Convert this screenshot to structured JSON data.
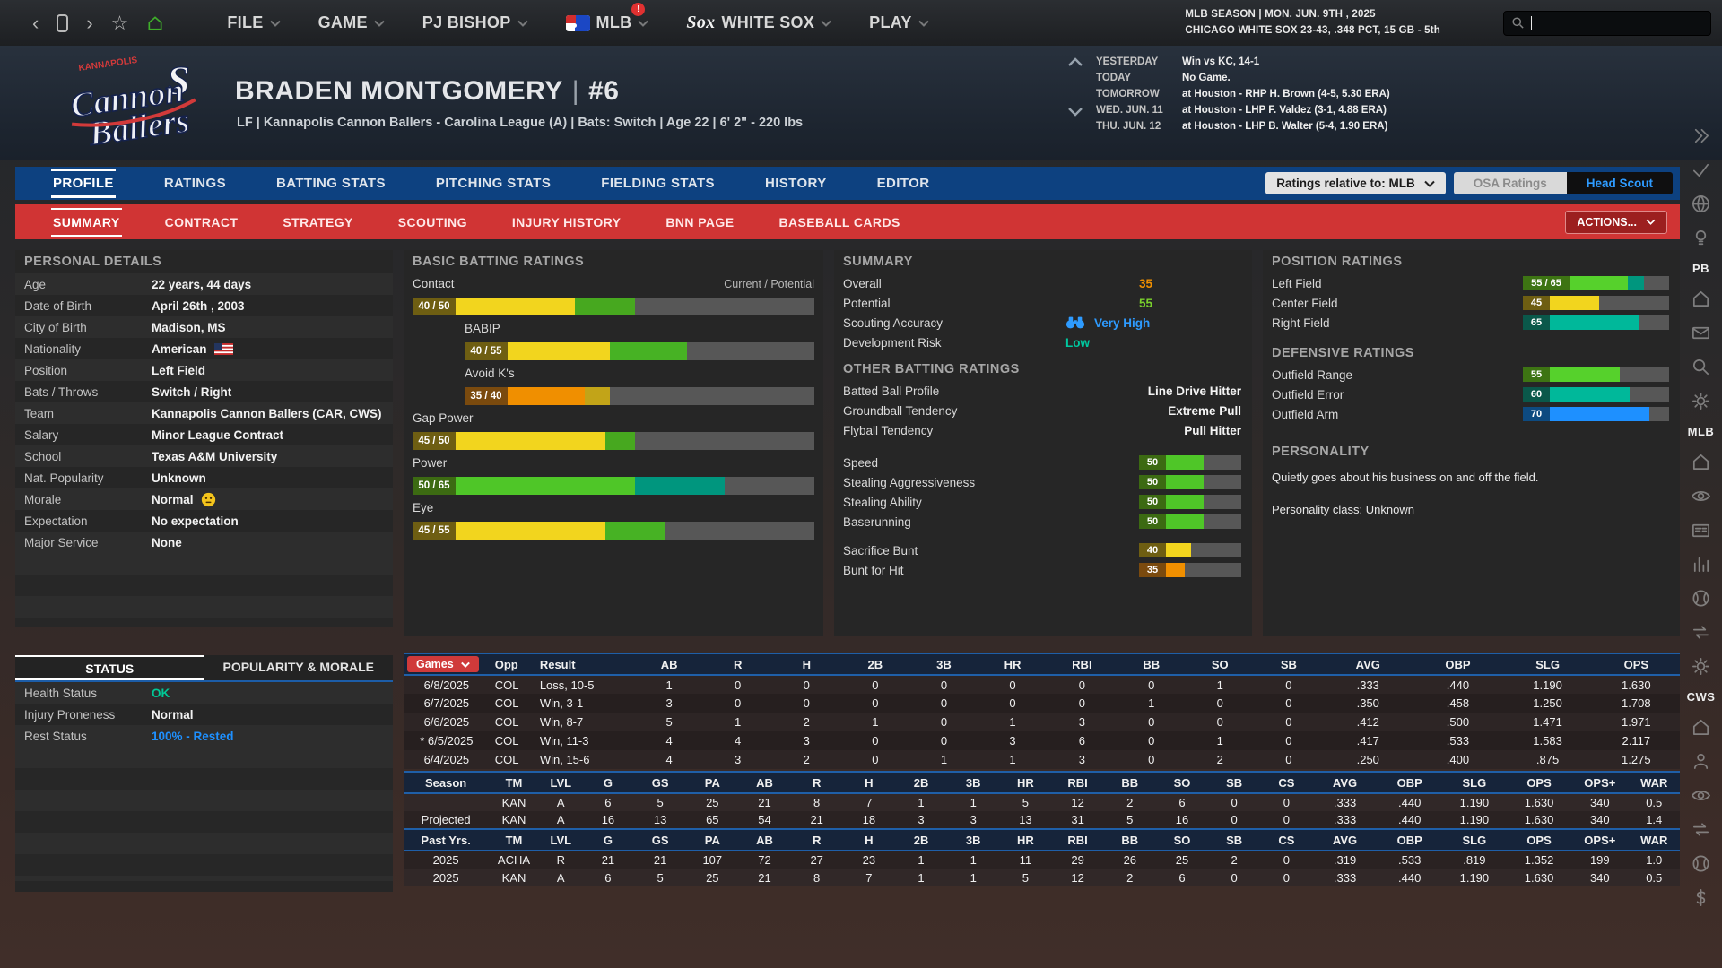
{
  "colors": {
    "blue_bar": "#0d4180",
    "red_bar": "#d03434",
    "accent_blue": "#2e9bff",
    "overall_orange": "#f08f00",
    "potential_green": "#7ad12c",
    "risk_teal": "#00c9a0",
    "ok_green": "#00c896",
    "rested_blue": "#1e90ff",
    "bar_orange": "#f08f00",
    "bar_yellow": "#f2d51e",
    "bar_green": "#4fc628",
    "bar_lime": "#56d12c",
    "bar_teal": "#00b89a",
    "bar_blue": "#1e90ff",
    "bar_gray": "#575757"
  },
  "topbar": {
    "menu": [
      {
        "label": "FILE"
      },
      {
        "label": "GAME"
      },
      {
        "label": "PJ BISHOP"
      },
      {
        "label": "MLB",
        "logo": "mlb",
        "badge": "!"
      },
      {
        "label": "WHITE SOX",
        "logo": "sox"
      },
      {
        "label": "PLAY"
      }
    ],
    "season_line1": "MLB SEASON  |  MON. JUN. 9TH , 2025",
    "season_line2": "CHICAGO WHITE SOX  23-43, .348 PCT, 15 GB - 5th",
    "search_value": ""
  },
  "header": {
    "name": "BRADEN MONTGOMERY",
    "number": "#6",
    "subtitle": "LF | Kannapolis Cannon Ballers - Carolina League (A)  |  Bats: Switch  |  Age 22  |  6' 2\"  - 220 lbs",
    "team_logo_top": "KANNAPOLIS",
    "team_logo_line1": "Cannon",
    "team_logo_line2": "Ballers",
    "schedule": [
      {
        "label": "YESTERDAY",
        "value": "Win vs KC, 14-1"
      },
      {
        "label": "TODAY",
        "value": "No Game."
      },
      {
        "label": "TOMORROW",
        "value": "at Houston - RHP H. Brown (4-5, 5.30 ERA)"
      },
      {
        "label": "WED. JUN. 11",
        "value": "at Houston - LHP F. Valdez (3-1, 4.88 ERA)"
      },
      {
        "label": "THU. JUN. 12",
        "value": "at Houston - LHP B. Walter (5-4, 1.90 ERA)"
      }
    ]
  },
  "tabs": [
    {
      "label": "PROFILE",
      "active": true
    },
    {
      "label": "RATINGS",
      "active": false
    },
    {
      "label": "BATTING STATS",
      "active": false
    },
    {
      "label": "PITCHING STATS",
      "active": false
    },
    {
      "label": "FIELDING STATS",
      "active": false
    },
    {
      "label": "HISTORY",
      "active": false
    },
    {
      "label": "EDITOR",
      "active": false
    }
  ],
  "controls": {
    "ratings_relative_label": "Ratings relative to: MLB",
    "osa_label": "OSA Ratings",
    "headscout_label": "Head Scout",
    "actions_label": "ACTIONS..."
  },
  "subtabs": [
    {
      "label": "SUMMARY",
      "active": true
    },
    {
      "label": "CONTRACT",
      "active": false
    },
    {
      "label": "STRATEGY",
      "active": false
    },
    {
      "label": "SCOUTING",
      "active": false
    },
    {
      "label": "INJURY HISTORY",
      "active": false
    },
    {
      "label": "BNN PAGE",
      "active": false
    },
    {
      "label": "BASEBALL CARDS",
      "active": false
    }
  ],
  "personal": {
    "title": "PERSONAL DETAILS",
    "rows": [
      {
        "label": "Age",
        "value": "22 years, 44 days"
      },
      {
        "label": "Date of Birth",
        "value": "April 26th , 2003"
      },
      {
        "label": "City of Birth",
        "value": "Madison, MS"
      },
      {
        "label": "Nationality",
        "value": "American",
        "flag": "us"
      },
      {
        "label": "Position",
        "value": "Left Field"
      },
      {
        "label": "Bats / Throws",
        "value": "Switch / Right"
      },
      {
        "label": "Team",
        "value": "Kannapolis Cannon Ballers (CAR, CWS)"
      },
      {
        "label": "Salary",
        "value": "Minor League Contract"
      },
      {
        "label": "School",
        "value": "Texas A&M University"
      },
      {
        "label": "Nat. Popularity",
        "value": "Unknown"
      },
      {
        "label": "Morale",
        "value": "Normal",
        "emoji": "neutral"
      },
      {
        "label": "Expectation",
        "value": "No expectation"
      },
      {
        "label": "Major Service",
        "value": "None"
      }
    ]
  },
  "batting_ratings": {
    "title": "BASIC BATTING RATINGS",
    "corner": "Current / Potential",
    "items": [
      {
        "label": "Contact",
        "cur": 40,
        "pot": 50,
        "indent": false
      },
      {
        "label": "BABIP",
        "cur": 40,
        "pot": 55,
        "indent": true
      },
      {
        "label": "Avoid K's",
        "cur": 35,
        "pot": 40,
        "indent": true
      },
      {
        "label": "Gap Power",
        "cur": 45,
        "pot": 50,
        "indent": false
      },
      {
        "label": "Power",
        "cur": 50,
        "pot": 65,
        "indent": false
      },
      {
        "label": "Eye",
        "cur": 45,
        "pot": 55,
        "indent": false
      }
    ]
  },
  "summary": {
    "title": "SUMMARY",
    "overall_label": "Overall",
    "overall_value": "35",
    "potential_label": "Potential",
    "potential_value": "55",
    "accuracy_label": "Scouting Accuracy",
    "accuracy_value": "Very High",
    "risk_label": "Development Risk",
    "risk_value": "Low",
    "other_title": "OTHER BATTING RATINGS",
    "other_rows": [
      {
        "label": "Batted Ball Profile",
        "value": "Line Drive Hitter"
      },
      {
        "label": "Groundball Tendency",
        "value": "Extreme Pull"
      },
      {
        "label": "Flyball Tendency",
        "value": "Pull Hitter"
      }
    ],
    "run_bars": [
      {
        "label": "Speed",
        "value": 50
      },
      {
        "label": "Stealing Aggressiveness",
        "value": 50
      },
      {
        "label": "Stealing Ability",
        "value": 50
      },
      {
        "label": "Baserunning",
        "value": 50
      }
    ],
    "bunt_bars": [
      {
        "label": "Sacrifice Bunt",
        "value": 40
      },
      {
        "label": "Bunt for Hit",
        "value": 35
      }
    ]
  },
  "positions": {
    "title": "POSITION RATINGS",
    "items": [
      {
        "label": "Left Field",
        "cur": 55,
        "pot": 65
      },
      {
        "label": "Center Field",
        "cur": 45
      },
      {
        "label": "Right Field",
        "cur": 65
      }
    ],
    "def_title": "DEFENSIVE RATINGS",
    "def_items": [
      {
        "label": "Outfield Range",
        "cur": 55
      },
      {
        "label": "Outfield Error",
        "cur": 60
      },
      {
        "label": "Outfield Arm",
        "cur": 70
      }
    ],
    "personality_title": "PERSONALITY",
    "personality_line1": "Quietly goes about his business on and off the field.",
    "personality_line2": "Personality class: Unknown"
  },
  "status": {
    "tabs": [
      {
        "label": "STATUS",
        "active": true
      },
      {
        "label": "POPULARITY & MORALE",
        "active": false
      }
    ],
    "rows": [
      {
        "label": "Health Status",
        "value": "OK",
        "color": "#00c896"
      },
      {
        "label": "Injury Proneness",
        "value": "Normal",
        "color": "#f2f2f2"
      },
      {
        "label": "Rest Status",
        "value": "100% - Rested",
        "color": "#1e90ff"
      }
    ]
  },
  "games_table": {
    "filter_label": "Games",
    "headers": [
      "Games",
      "Opp",
      "Result",
      "AB",
      "R",
      "H",
      "2B",
      "3B",
      "HR",
      "RBI",
      "BB",
      "SO",
      "SB",
      "AVG",
      "OBP",
      "SLG",
      "OPS"
    ],
    "rows": [
      [
        "6/8/2025",
        "COL",
        "Loss, 10-5",
        "1",
        "0",
        "0",
        "0",
        "0",
        "0",
        "0",
        "0",
        "1",
        "0",
        ".333",
        ".440",
        "1.190",
        "1.630"
      ],
      [
        "6/7/2025",
        "COL",
        "Win, 3-1",
        "3",
        "0",
        "0",
        "0",
        "0",
        "0",
        "0",
        "1",
        "0",
        "0",
        ".350",
        ".458",
        "1.250",
        "1.708"
      ],
      [
        "6/6/2025",
        "COL",
        "Win, 8-7",
        "5",
        "1",
        "2",
        "1",
        "0",
        "1",
        "3",
        "0",
        "0",
        "0",
        ".412",
        ".500",
        "1.471",
        "1.971"
      ],
      [
        "* 6/5/2025",
        "COL",
        "Win, 11-3",
        "4",
        "4",
        "3",
        "0",
        "0",
        "3",
        "6",
        "0",
        "1",
        "0",
        ".417",
        ".533",
        "1.583",
        "2.117"
      ],
      [
        "6/4/2025",
        "COL",
        "Win, 15-6",
        "4",
        "3",
        "2",
        "0",
        "1",
        "1",
        "3",
        "0",
        "2",
        "0",
        ".250",
        ".400",
        ".875",
        "1.275"
      ]
    ]
  },
  "season_table": {
    "headers": [
      "Season",
      "TM",
      "LVL",
      "G",
      "GS",
      "PA",
      "AB",
      "R",
      "H",
      "2B",
      "3B",
      "HR",
      "RBI",
      "BB",
      "SO",
      "SB",
      "CS",
      "AVG",
      "OBP",
      "SLG",
      "OPS",
      "OPS+",
      "WAR"
    ],
    "rows": [
      [
        "",
        "KAN",
        "A",
        "6",
        "5",
        "25",
        "21",
        "8",
        "7",
        "1",
        "1",
        "5",
        "12",
        "2",
        "6",
        "0",
        "0",
        ".333",
        ".440",
        "1.190",
        "1.630",
        "340",
        "0.5"
      ],
      [
        "Projected",
        "KAN",
        "A",
        "16",
        "13",
        "65",
        "54",
        "21",
        "18",
        "3",
        "3",
        "13",
        "31",
        "5",
        "16",
        "0",
        "0",
        ".333",
        ".440",
        "1.190",
        "1.630",
        "340",
        "1.4"
      ]
    ],
    "past_headers": [
      "Past Yrs.",
      "TM",
      "LVL",
      "G",
      "GS",
      "PA",
      "AB",
      "R",
      "H",
      "2B",
      "3B",
      "HR",
      "RBI",
      "BB",
      "SO",
      "SB",
      "CS",
      "AVG",
      "OBP",
      "SLG",
      "OPS",
      "OPS+",
      "WAR"
    ],
    "past_rows": [
      [
        "2025",
        "ACHA",
        "R",
        "21",
        "21",
        "107",
        "72",
        "27",
        "23",
        "1",
        "1",
        "11",
        "29",
        "26",
        "25",
        "2",
        "0",
        ".319",
        ".533",
        ".819",
        "1.352",
        "199",
        "1.0"
      ],
      [
        "2025",
        "KAN",
        "A",
        "6",
        "5",
        "25",
        "21",
        "8",
        "7",
        "1",
        "1",
        "5",
        "12",
        "2",
        "6",
        "0",
        "0",
        ".333",
        ".440",
        "1.190",
        "1.630",
        "340",
        "0.5"
      ]
    ]
  },
  "sidebar": {
    "items": [
      {
        "icon": "collapse"
      },
      {
        "icon": "check"
      },
      {
        "icon": "globe"
      },
      {
        "icon": "bulb"
      },
      {
        "text": "PB"
      },
      {
        "icon": "home"
      },
      {
        "icon": "mail"
      },
      {
        "icon": "search"
      },
      {
        "icon": "gear"
      },
      {
        "text": "MLB"
      },
      {
        "icon": "home"
      },
      {
        "icon": "eye"
      },
      {
        "icon": "card"
      },
      {
        "icon": "chart"
      },
      {
        "icon": "baseball"
      },
      {
        "icon": "swap"
      },
      {
        "icon": "gear"
      },
      {
        "text": "CWS"
      },
      {
        "icon": "home"
      },
      {
        "icon": "person"
      },
      {
        "icon": "eye"
      },
      {
        "icon": "swap"
      },
      {
        "icon": "baseball"
      },
      {
        "icon": "dollar"
      }
    ]
  }
}
